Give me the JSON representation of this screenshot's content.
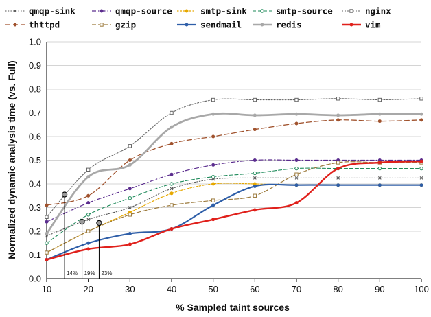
{
  "chart_data": {
    "type": "line",
    "title": "",
    "xlabel": "% Sampled taint sources",
    "ylabel": "Normalized dynamic analysis time (vs. Full)",
    "xlim": [
      10,
      100
    ],
    "ylim": [
      0,
      1.0
    ],
    "x_ticks": [
      "10",
      "20",
      "30",
      "40",
      "50",
      "60",
      "70",
      "80",
      "90",
      "100"
    ],
    "y_ticks": [
      "0.0",
      "0.1",
      "0.2",
      "0.3",
      "0.4",
      "0.5",
      "0.6",
      "0.7",
      "0.8",
      "0.9",
      "1.0"
    ],
    "grid": "horizontal",
    "legend_position": "top",
    "x": [
      10,
      20,
      30,
      40,
      50,
      60,
      70,
      80,
      90,
      100
    ],
    "series": [
      {
        "name": "qmqp-sink",
        "color": "#555555",
        "values": [
          0.18,
          0.25,
          0.3,
          0.38,
          0.42,
          0.425,
          0.425,
          0.425,
          0.425,
          0.425
        ]
      },
      {
        "name": "qmqp-source",
        "color": "#5b2d8e",
        "values": [
          0.24,
          0.32,
          0.38,
          0.44,
          0.48,
          0.5,
          0.5,
          0.5,
          0.5,
          0.5
        ]
      },
      {
        "name": "smtp-sink",
        "color": "#e6a800",
        "values": [
          0.11,
          0.2,
          0.28,
          0.36,
          0.4,
          0.4,
          0.395,
          0.395,
          0.395,
          0.395
        ]
      },
      {
        "name": "smtp-source",
        "color": "#1e8a5a",
        "values": [
          0.15,
          0.27,
          0.34,
          0.4,
          0.43,
          0.445,
          0.465,
          0.465,
          0.465,
          0.465
        ]
      },
      {
        "name": "nginx",
        "color": "#666666",
        "values": [
          0.26,
          0.46,
          0.56,
          0.7,
          0.755,
          0.755,
          0.755,
          0.76,
          0.755,
          0.76
        ]
      },
      {
        "name": "thttpd",
        "color": "#a0522d",
        "values": [
          0.31,
          0.35,
          0.5,
          0.57,
          0.6,
          0.63,
          0.655,
          0.67,
          0.665,
          0.67
        ]
      },
      {
        "name": "gzip",
        "color": "#9c7a3c",
        "values": [
          0.11,
          0.2,
          0.27,
          0.31,
          0.33,
          0.35,
          0.44,
          0.49,
          0.49,
          0.49
        ]
      },
      {
        "name": "sendmail",
        "color": "#2e5ea8",
        "values": [
          0.08,
          0.15,
          0.19,
          0.21,
          0.31,
          0.39,
          0.395,
          0.395,
          0.395,
          0.395
        ]
      },
      {
        "name": "redis",
        "color": "#a8a8a8",
        "values": [
          0.19,
          0.43,
          0.48,
          0.64,
          0.695,
          0.69,
          0.695,
          0.69,
          0.695,
          0.695
        ]
      },
      {
        "name": "vim",
        "color": "#e0201b",
        "values": [
          0.08,
          0.125,
          0.145,
          0.21,
          0.25,
          0.29,
          0.32,
          0.465,
          0.49,
          0.495
        ]
      }
    ],
    "annotations": [
      {
        "label": "14%",
        "x": 14.3,
        "y": 0.355
      },
      {
        "label": "19%",
        "x": 18.5,
        "y": 0.24
      },
      {
        "label": "23%",
        "x": 22.6,
        "y": 0.235
      }
    ]
  }
}
